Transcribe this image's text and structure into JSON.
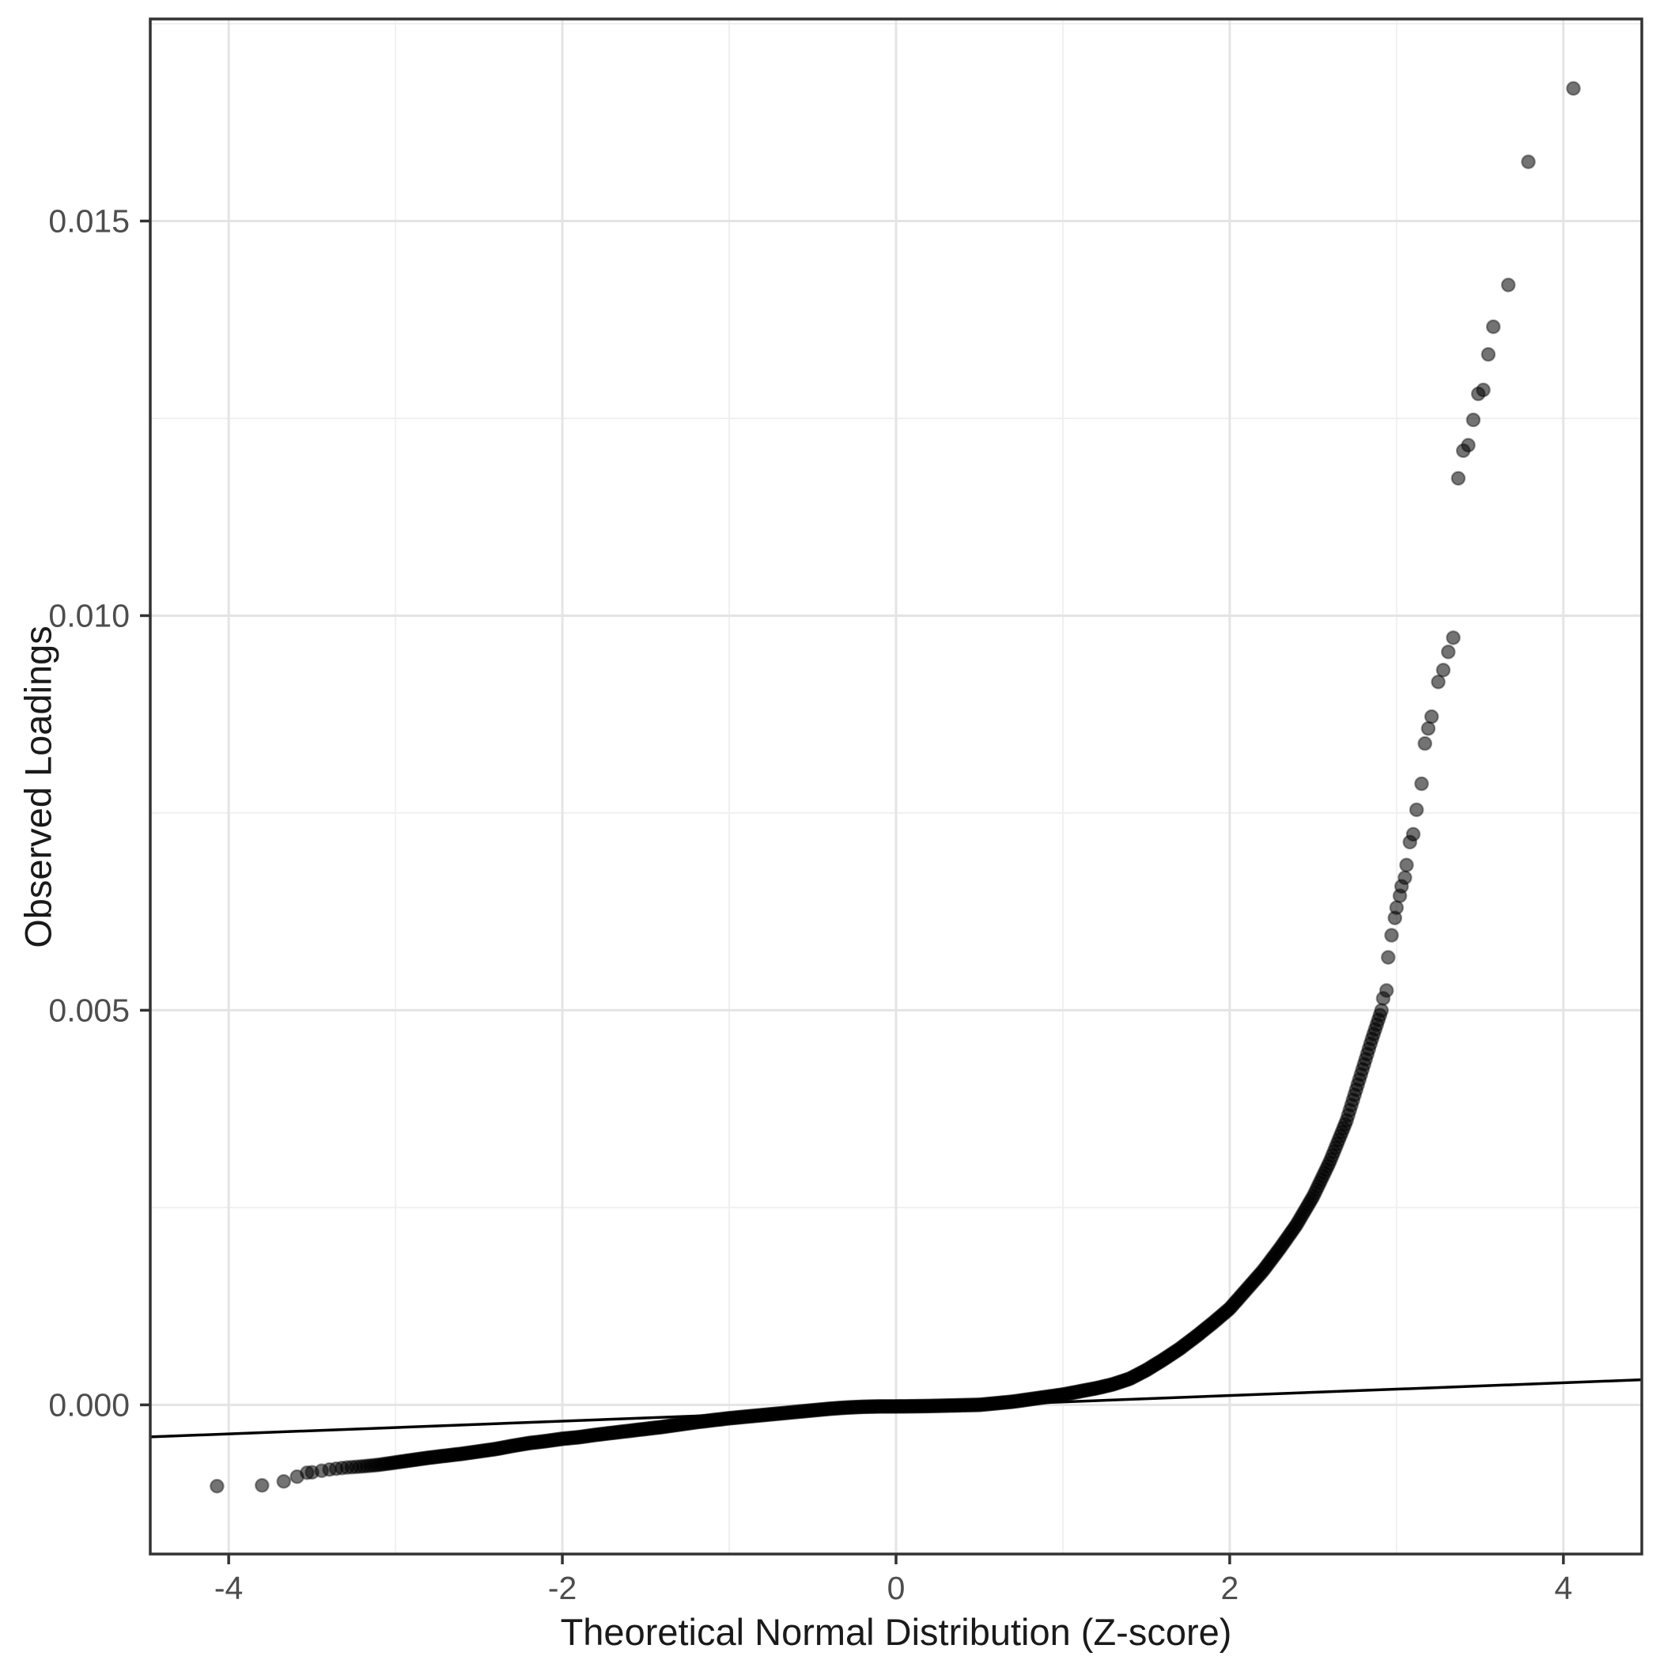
{
  "chart_data": {
    "type": "scatter",
    "subtype": "qq-plot",
    "title": "",
    "xlabel": "Theoretical Normal Distribution (Z-score)",
    "ylabel": "Observed Loadings",
    "xlim": [
      -4.47,
      4.47
    ],
    "ylim": [
      -0.00189,
      0.01756
    ],
    "x_ticks": [
      -4,
      -2,
      0,
      2,
      4
    ],
    "x_tick_labels": [
      "-4",
      "-2",
      "0",
      "2",
      "4"
    ],
    "x_minor_ticks": [
      -3,
      -1,
      1,
      3
    ],
    "y_ticks": [
      0,
      0.005,
      0.01,
      0.015
    ],
    "y_tick_labels": [
      "0.000",
      "0.005",
      "0.010",
      "0.015"
    ],
    "y_minor_ticks": [
      0.0025,
      0.0075,
      0.0125,
      0.0175
    ],
    "grid": "major+minor",
    "legend": "none",
    "qq_line": {
      "intercept": -4.4e-05,
      "slope": 8.1e-05
    },
    "approx_n_points": 20000,
    "band_z_range": [
      -3.5,
      2.91
    ],
    "band_curve": [
      [
        -3.5,
        -0.000855
      ],
      [
        -3.4,
        -0.00082
      ],
      [
        -3.3,
        -0.000795
      ],
      [
        -3.2,
        -0.00078
      ],
      [
        -3.1,
        -0.00076
      ],
      [
        -3.0,
        -0.00073
      ],
      [
        -2.9,
        -0.0007
      ],
      [
        -2.8,
        -0.00067
      ],
      [
        -2.7,
        -0.000645
      ],
      [
        -2.6,
        -0.00062
      ],
      [
        -2.5,
        -0.00059
      ],
      [
        -2.4,
        -0.00056
      ],
      [
        -2.3,
        -0.00052
      ],
      [
        -2.2,
        -0.000485
      ],
      [
        -2.1,
        -0.00046
      ],
      [
        -2.0,
        -0.00043
      ],
      [
        -1.9,
        -0.00041
      ],
      [
        -1.8,
        -0.00038
      ],
      [
        -1.7,
        -0.000355
      ],
      [
        -1.6,
        -0.00033
      ],
      [
        -1.5,
        -0.000305
      ],
      [
        -1.4,
        -0.00028
      ],
      [
        -1.3,
        -0.00025
      ],
      [
        -1.2,
        -0.00022
      ],
      [
        -1.1,
        -0.000195
      ],
      [
        -1.0,
        -0.00017
      ],
      [
        -0.9,
        -0.00015
      ],
      [
        -0.8,
        -0.00013
      ],
      [
        -0.7,
        -0.00011
      ],
      [
        -0.6,
        -9e-05
      ],
      [
        -0.5,
        -7e-05
      ],
      [
        -0.4,
        -5e-05
      ],
      [
        -0.3,
        -3.5e-05
      ],
      [
        -0.2,
        -2.5e-05
      ],
      [
        -0.1,
        -2e-05
      ],
      [
        0.0,
        -2e-05
      ],
      [
        0.1,
        -1.8e-05
      ],
      [
        0.2,
        -1.5e-05
      ],
      [
        0.3,
        -1e-05
      ],
      [
        0.4,
        -5e-06
      ],
      [
        0.5,
        0.0
      ],
      [
        0.6,
        2e-05
      ],
      [
        0.7,
        4e-05
      ],
      [
        0.8,
        7e-05
      ],
      [
        0.9,
        0.0001
      ],
      [
        1.0,
        0.00013
      ],
      [
        1.1,
        0.00017
      ],
      [
        1.2,
        0.00021
      ],
      [
        1.3,
        0.00026
      ],
      [
        1.4,
        0.00033
      ],
      [
        1.5,
        0.00044
      ],
      [
        1.6,
        0.00057
      ],
      [
        1.7,
        0.00071
      ],
      [
        1.8,
        0.00087
      ],
      [
        1.9,
        0.00104
      ],
      [
        2.0,
        0.00122
      ],
      [
        2.1,
        0.00146
      ],
      [
        2.2,
        0.0017
      ],
      [
        2.3,
        0.00198
      ],
      [
        2.4,
        0.00228
      ],
      [
        2.5,
        0.00264
      ],
      [
        2.6,
        0.00308
      ],
      [
        2.7,
        0.0036
      ],
      [
        2.8,
        0.00428
      ],
      [
        2.85,
        0.00462
      ],
      [
        2.91,
        0.005
      ]
    ],
    "left_tail_points": [
      [
        -4.07,
        -0.00103
      ],
      [
        -3.8,
        -0.00102
      ],
      [
        -3.67,
        -0.00097
      ],
      [
        -3.59,
        -0.00091
      ],
      [
        -3.53,
        -0.00086
      ]
    ],
    "upper_tail_points": [
      [
        2.92,
        0.00515
      ],
      [
        2.94,
        0.00525
      ],
      [
        2.95,
        0.00567
      ],
      [
        2.97,
        0.00595
      ],
      [
        2.99,
        0.00617
      ],
      [
        3.0,
        0.0063
      ],
      [
        3.02,
        0.00645
      ],
      [
        3.03,
        0.00657
      ],
      [
        3.05,
        0.00668
      ],
      [
        3.06,
        0.00684
      ],
      [
        3.08,
        0.00713
      ],
      [
        3.1,
        0.00723
      ],
      [
        3.12,
        0.00754
      ],
      [
        3.15,
        0.00787
      ],
      [
        3.17,
        0.00838
      ],
      [
        3.19,
        0.00857
      ],
      [
        3.21,
        0.00872
      ],
      [
        3.25,
        0.00916
      ],
      [
        3.28,
        0.00931
      ],
      [
        3.31,
        0.00954
      ],
      [
        3.34,
        0.00972
      ],
      [
        3.37,
        0.01174
      ],
      [
        3.4,
        0.01209
      ],
      [
        3.43,
        0.01216
      ],
      [
        3.46,
        0.01248
      ],
      [
        3.49,
        0.01281
      ],
      [
        3.52,
        0.01286
      ],
      [
        3.55,
        0.01331
      ],
      [
        3.58,
        0.01366
      ],
      [
        3.67,
        0.01419
      ],
      [
        3.79,
        0.01575
      ],
      [
        4.06,
        0.01668
      ]
    ],
    "colors": {
      "point_fill": "rgba(0,0,0,0.55)",
      "point_stroke": "rgba(0,0,0,0.38)",
      "reference_line": "#000000",
      "panel_border": "#333333",
      "grid_major": "#e4e4e4",
      "grid_minor": "#f0f0f0",
      "tick_mark": "#333333",
      "tick_label": "#4d4d4d",
      "axis_title": "#1a1a1a",
      "panel_background": "#ffffff"
    }
  }
}
